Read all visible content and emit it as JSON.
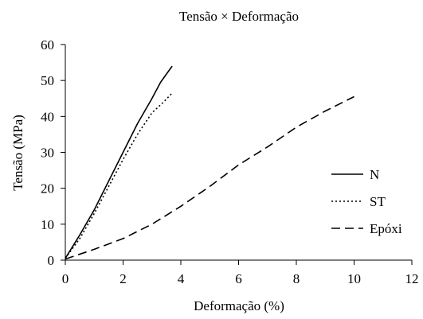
{
  "chart_data": {
    "type": "line",
    "title": "Tensão × Deformação",
    "xlabel": "Deformação (%)",
    "ylabel": "Tensão (MPa)",
    "xlim": [
      0,
      12
    ],
    "ylim": [
      0,
      60
    ],
    "xticks": [
      "0",
      "2",
      "4",
      "6",
      "8",
      "10",
      "12"
    ],
    "yticks": [
      "0",
      "10",
      "20",
      "30",
      "40",
      "50",
      "60"
    ],
    "grid": false,
    "legend_position": "right",
    "series": [
      {
        "name": "N",
        "style": "solid",
        "color": "#000000",
        "points": [
          [
            0,
            0.5
          ],
          [
            0.5,
            7
          ],
          [
            1,
            14
          ],
          [
            1.5,
            22
          ],
          [
            2,
            30
          ],
          [
            2.5,
            38
          ],
          [
            3,
            45
          ],
          [
            3.3,
            49.5
          ],
          [
            3.7,
            54
          ]
        ]
      },
      {
        "name": "ST",
        "style": "dotted",
        "color": "#000000",
        "points": [
          [
            0,
            0.5
          ],
          [
            0.5,
            6
          ],
          [
            1,
            13
          ],
          [
            1.5,
            20.5
          ],
          [
            2,
            28
          ],
          [
            2.5,
            35
          ],
          [
            3,
            41
          ],
          [
            3.4,
            44
          ],
          [
            3.7,
            46.5
          ]
        ]
      },
      {
        "name": "Epóxi",
        "style": "dashed",
        "color": "#000000",
        "points": [
          [
            0,
            0.3
          ],
          [
            1,
            3
          ],
          [
            2,
            6
          ],
          [
            3,
            10
          ],
          [
            4,
            15
          ],
          [
            5,
            20.5
          ],
          [
            6,
            26.5
          ],
          [
            7,
            31.5
          ],
          [
            8,
            37
          ],
          [
            9,
            41.5
          ],
          [
            10,
            45.5
          ]
        ]
      }
    ]
  }
}
